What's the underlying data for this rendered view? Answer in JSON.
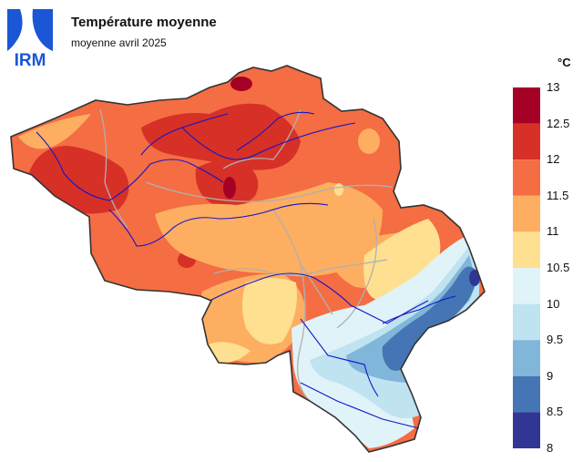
{
  "logo": {
    "text": "IRM",
    "color": "#1a56d6"
  },
  "title": "Température moyenne",
  "subtitle": "moyenne avril 2025",
  "legend": {
    "unit": "°C",
    "ticks": [
      "13",
      "12.5",
      "12",
      "11.5",
      "11",
      "10.5",
      "10",
      "9.5",
      "9",
      "8.5",
      "8"
    ],
    "colors": [
      "#a50026",
      "#d73027",
      "#f46d43",
      "#fdae61",
      "#fee090",
      "#e0f3f8",
      "#bfe3f0",
      "#80b6d9",
      "#4575b4",
      "#313695"
    ]
  }
}
